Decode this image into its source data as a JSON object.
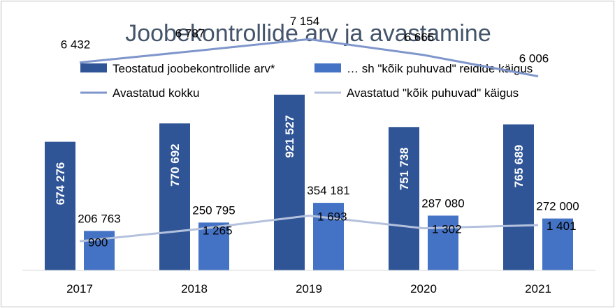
{
  "chart_data": {
    "type": "bar",
    "title": "Joobekontrollide arv ja avastamine",
    "categories": [
      "2017",
      "2018",
      "2019",
      "2020",
      "2021"
    ],
    "series": [
      {
        "name": "Teostatud joobekontrollide arv*",
        "kind": "bar",
        "axis": "primary",
        "color": "#2f5597",
        "values": [
          674276,
          770692,
          921527,
          751738,
          765689
        ],
        "labels": [
          "674 276",
          "770 692",
          "921 527",
          "751 738",
          "765 689"
        ]
      },
      {
        "name": "… sh \"kõik puhuvad\" reidide käigus",
        "kind": "bar",
        "axis": "primary",
        "color": "#4472c4",
        "values": [
          206763,
          250795,
          354181,
          287080,
          272000
        ],
        "labels": [
          "206 763",
          "250 795",
          "354 181",
          "287 080",
          "272 000"
        ]
      },
      {
        "name": "Avastatud kokku",
        "kind": "line",
        "axis": "secondary",
        "color": "#7f96cc",
        "values": [
          6432,
          6787,
          7154,
          6665,
          6006
        ],
        "labels": [
          "6 432",
          "6 787",
          "7 154",
          "6 665",
          "6 006"
        ]
      },
      {
        "name": "Avastatud \"kõik puhuvad\" käigus",
        "kind": "line",
        "axis": "secondary",
        "color": "#b4c1dd",
        "values": [
          900,
          1265,
          1693,
          1302,
          1401
        ],
        "labels": [
          "900",
          "1 265",
          "1 693",
          "1 302",
          "1 401"
        ]
      }
    ],
    "ylim": [
      0,
      1100000
    ],
    "y2lim": [
      0,
      8000
    ],
    "grid": false,
    "legend_position": "top"
  }
}
